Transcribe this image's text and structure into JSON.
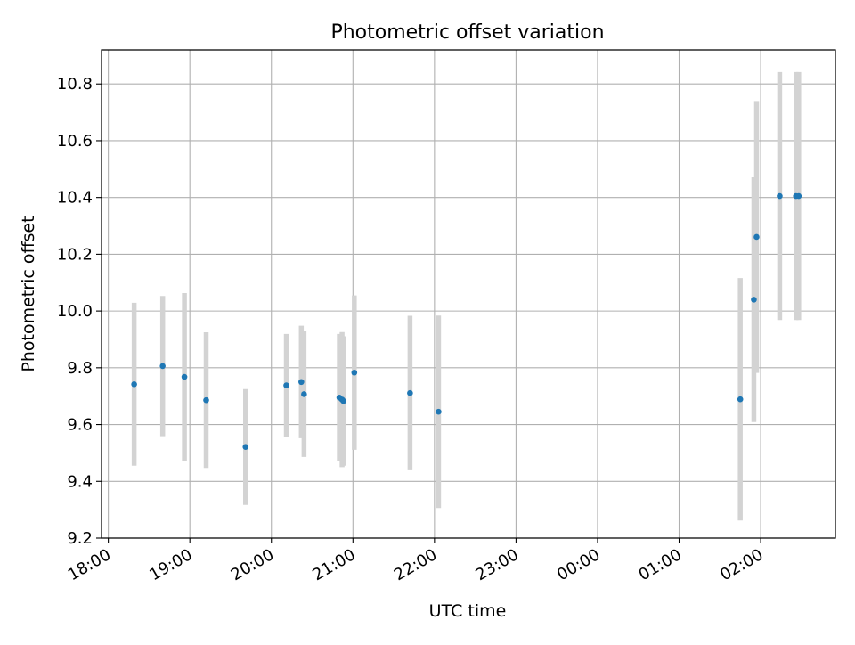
{
  "chart_data": {
    "type": "scatter",
    "title": "Photometric offset variation",
    "xlabel": "UTC time",
    "ylabel": "Photometric offset",
    "grid": true,
    "legend": "none",
    "colors": {
      "marker": "#1f77b4",
      "errorbar": "#d3d3d3",
      "grid": "#b0b0b0",
      "axes": "#000000"
    },
    "xlim": [
      "17:55",
      "02:55 (+1 day)"
    ],
    "ylim": [
      9.2,
      10.92
    ],
    "x_ticks": [
      "18:00",
      "19:00",
      "20:00",
      "21:00",
      "22:00",
      "23:00",
      "00:00",
      "01:00",
      "02:00"
    ],
    "y_ticks": [
      9.2,
      9.4,
      9.6,
      9.8,
      10.0,
      10.2,
      10.4,
      10.6,
      10.8
    ],
    "y_tick_labels": [
      "9.2",
      "9.4",
      "9.6",
      "9.8",
      "10.0",
      "10.2",
      "10.4",
      "10.6",
      "10.8"
    ],
    "series": [
      {
        "points": [
          {
            "time": "18:19",
            "y": 9.742,
            "err": 0.287
          },
          {
            "time": "18:40",
            "y": 9.806,
            "err": 0.247
          },
          {
            "time": "18:56",
            "y": 9.768,
            "err": 0.295
          },
          {
            "time": "19:12",
            "y": 9.686,
            "err": 0.239
          },
          {
            "time": "19:41",
            "y": 9.521,
            "err": 0.204
          },
          {
            "time": "20:11",
            "y": 9.738,
            "err": 0.181
          },
          {
            "time": "20:22",
            "y": 9.75,
            "err": 0.198
          },
          {
            "time": "20:24",
            "y": 9.707,
            "err": 0.221
          },
          {
            "time": "20:50",
            "y": 9.695,
            "err": 0.224
          },
          {
            "time": "20:52",
            "y": 9.688,
            "err": 0.238
          },
          {
            "time": "20:53",
            "y": 9.683,
            "err": 0.228
          },
          {
            "time": "21:01",
            "y": 9.783,
            "err": 0.272
          },
          {
            "time": "21:42",
            "y": 9.711,
            "err": 0.272
          },
          {
            "time": "22:03",
            "y": 9.645,
            "err": 0.339
          },
          {
            "time": "01:45 (+1 day)",
            "y": 9.689,
            "err": 0.427
          },
          {
            "time": "01:55 (+1 day)",
            "y": 10.04,
            "err": 0.431
          },
          {
            "time": "01:57 (+1 day)",
            "y": 10.261,
            "err": 0.479
          },
          {
            "time": "02:14 (+1 day)",
            "y": 10.405,
            "err": 0.437
          },
          {
            "time": "02:26 (+1 day)",
            "y": 10.405,
            "err": 0.437
          },
          {
            "time": "02:28 (+1 day)",
            "y": 10.405,
            "err": 0.437
          }
        ]
      }
    ]
  }
}
